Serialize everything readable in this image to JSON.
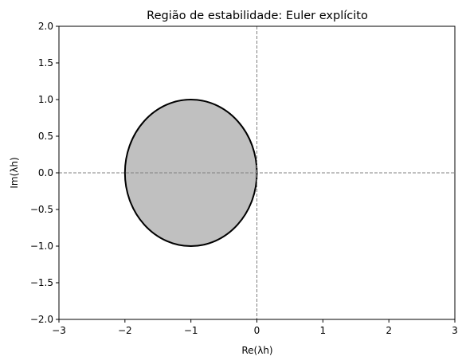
{
  "chart_data": {
    "type": "area",
    "title": "Região de estabilidade: Euler explícito",
    "xlabel": "Re(λh)",
    "ylabel": "Im(λh)",
    "xlim": [
      -3,
      3
    ],
    "ylim": [
      -2,
      2
    ],
    "xticks": [
      -3,
      -2,
      -1,
      0,
      1,
      2,
      3
    ],
    "yticks": [
      -2.0,
      -1.5,
      -1.0,
      -0.5,
      0.0,
      0.5,
      1.0,
      1.5,
      2.0
    ],
    "xtick_labels": [
      "−3",
      "−2",
      "−1",
      "0",
      "1",
      "2",
      "3"
    ],
    "ytick_labels": [
      "−2.0",
      "−1.5",
      "−1.0",
      "−0.5",
      "0.0",
      "0.5",
      "1.0",
      "1.5",
      "2.0"
    ],
    "grid": false,
    "reference_lines": [
      {
        "orientation": "horizontal",
        "value": 0,
        "style": "dashed",
        "color": "#808080"
      },
      {
        "orientation": "vertical",
        "value": 0,
        "style": "dashed",
        "color": "#808080"
      }
    ],
    "region": {
      "shape": "disk",
      "center": [
        -1,
        0
      ],
      "radius": 1,
      "fill_color": "#c0c0c0",
      "edge_color": "#000000"
    }
  }
}
